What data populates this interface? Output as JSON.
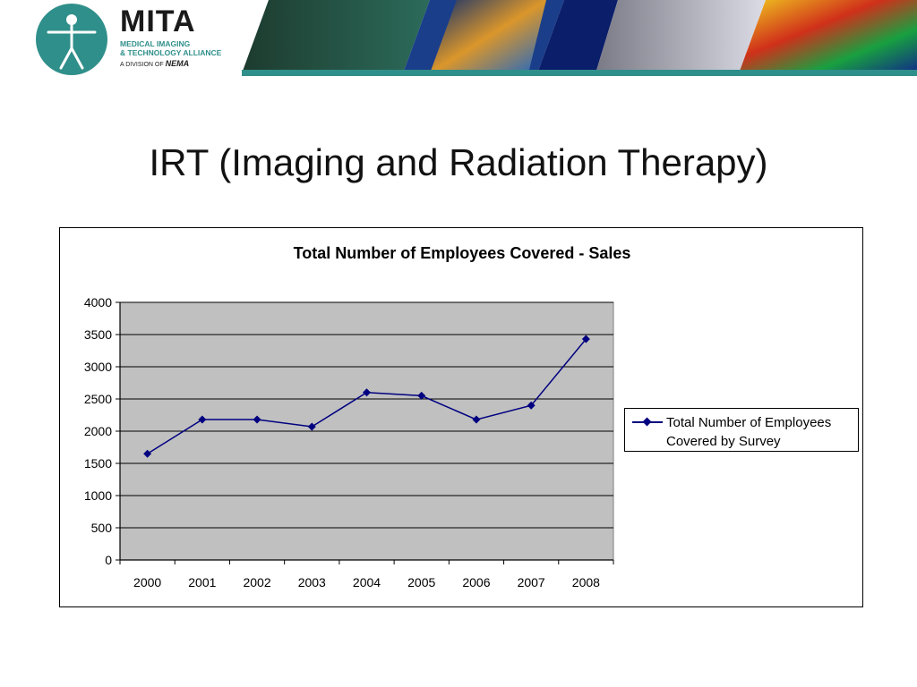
{
  "header": {
    "brand_title": "MITA",
    "brand_sub1": "MEDICAL IMAGING",
    "brand_sub2": "& TECHNOLOGY ALLIANCE",
    "brand_division_prefix": "A DIVISION OF",
    "brand_division_org": "NEMA",
    "colors": {
      "teal": "#2f8f8a"
    }
  },
  "slide": {
    "title": "IRT (Imaging and Radiation Therapy)"
  },
  "chart_data": {
    "type": "line",
    "title": "Total Number of Employees Covered - Sales",
    "xlabel": "",
    "ylabel": "",
    "categories": [
      "2000",
      "2001",
      "2002",
      "2003",
      "2004",
      "2005",
      "2006",
      "2007",
      "2008"
    ],
    "series": [
      {
        "name": "Total Number of Employees Covered by Survey",
        "values": [
          1650,
          2180,
          2180,
          2070,
          2600,
          2550,
          2180,
          2400,
          3430
        ],
        "color": "#000080",
        "marker": "diamond"
      }
    ],
    "ylim": [
      0,
      4000
    ],
    "yticks": [
      "0",
      "500",
      "1000",
      "1500",
      "2000",
      "2500",
      "3000",
      "3500",
      "4000"
    ],
    "grid": true,
    "plot_background": "#c0c0c0",
    "legend": "right"
  }
}
